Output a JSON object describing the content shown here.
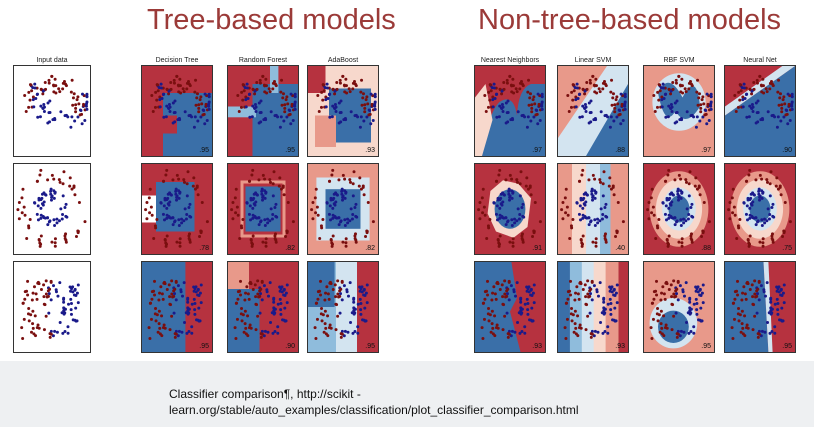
{
  "headings": {
    "tree": "Tree-based models",
    "nontree": "Non-tree-based models"
  },
  "columns": [
    {
      "title": "Input data",
      "scores": [
        "",
        "",
        ""
      ]
    },
    {
      "title": "Decision Tree",
      "scores": [
        ".95",
        ".78",
        ".95"
      ]
    },
    {
      "title": "Random Forest",
      "scores": [
        ".95",
        ".82",
        ".90"
      ]
    },
    {
      "title": "AdaBoost",
      "scores": [
        ".93",
        ".82",
        ".95"
      ]
    },
    {
      "title": "Nearest Neighbors",
      "scores": [
        ".97",
        ".91",
        ".93"
      ]
    },
    {
      "title": "Linear SVM",
      "scores": [
        ".88",
        ".40",
        ".93"
      ]
    },
    {
      "title": "RBF SVM",
      "scores": [
        ".97",
        ".88",
        ".95"
      ]
    },
    {
      "title": "Neural Net",
      "scores": [
        ".90",
        ".75",
        ".95"
      ]
    }
  ],
  "datasets": [
    "moons",
    "circles",
    "linear"
  ],
  "colors": {
    "red": "#b6323f",
    "blue": "#3a6fa8",
    "point_red": "#7a0f0f",
    "point_blue": "#1a1a8a",
    "heading": "#9b3a38",
    "footer_bg": "#eef0f2"
  },
  "caption": {
    "line1": "Classifier comparison¶, http://scikit -",
    "line2": "learn.org/stable/auto_examples/classification/plot_classifier_comparison.html"
  }
}
